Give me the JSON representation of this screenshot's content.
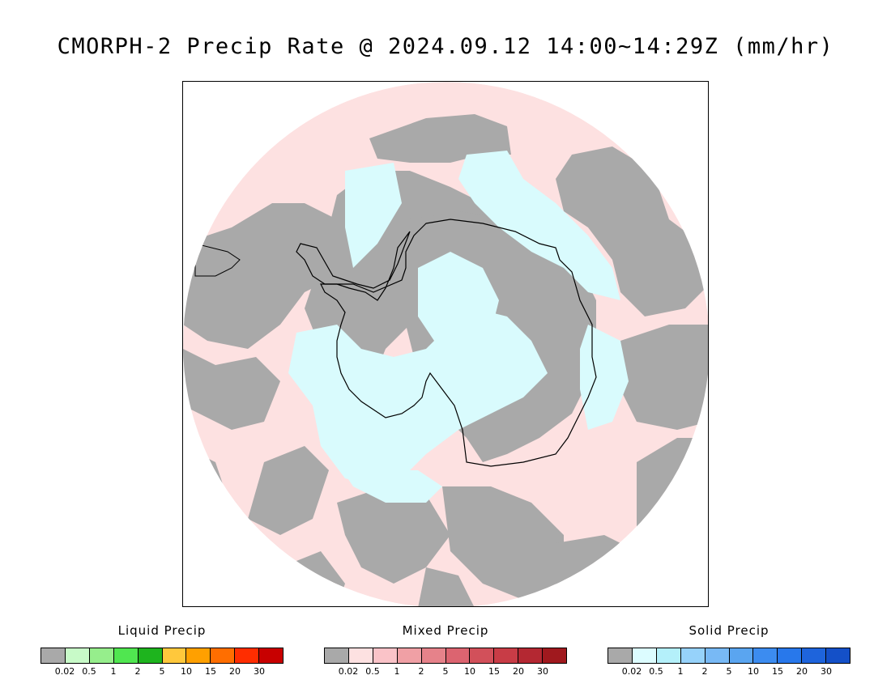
{
  "title": "CMORPH-2 Precip Rate @ 2024.09.12 14:00~14:29Z (mm/hr)",
  "map": {
    "projection": "south-polar-stereographic",
    "colors": {
      "no_precip": "#a9a9a9",
      "mixed_light": "#fde1e1",
      "solid_light": "#d9fbfd",
      "coastline": "#000000",
      "frame": "#000000"
    }
  },
  "legends": [
    {
      "title": "Liquid Precip",
      "colors": [
        "#a9a9a9",
        "#c8fac8",
        "#96ee8c",
        "#50e650",
        "#1eb41e",
        "#ffc83c",
        "#ffa000",
        "#ff6e00",
        "#ff2d00",
        "#c80000"
      ],
      "ticks": [
        "0.02",
        "0.5",
        "1",
        "2",
        "5",
        "10",
        "15",
        "20",
        "30"
      ]
    },
    {
      "title": "Mixed Precip",
      "colors": [
        "#a9a9a9",
        "#fde1e1",
        "#fac3c8",
        "#f0a0a5",
        "#e6828a",
        "#dc6470",
        "#d2505a",
        "#c83c46",
        "#b42832",
        "#a0191e"
      ],
      "ticks": [
        "0.02",
        "0.5",
        "1",
        "2",
        "5",
        "10",
        "15",
        "20",
        "30"
      ]
    },
    {
      "title": "Solid Precip",
      "colors": [
        "#a9a9a9",
        "#dcfcff",
        "#b4f0fa",
        "#96d2fa",
        "#78b9f5",
        "#5aa5f0",
        "#3c8cf0",
        "#2878eb",
        "#1e64dc",
        "#1450c8"
      ],
      "ticks": [
        "0.02",
        "0.5",
        "1",
        "2",
        "5",
        "10",
        "15",
        "20",
        "30"
      ]
    }
  ]
}
